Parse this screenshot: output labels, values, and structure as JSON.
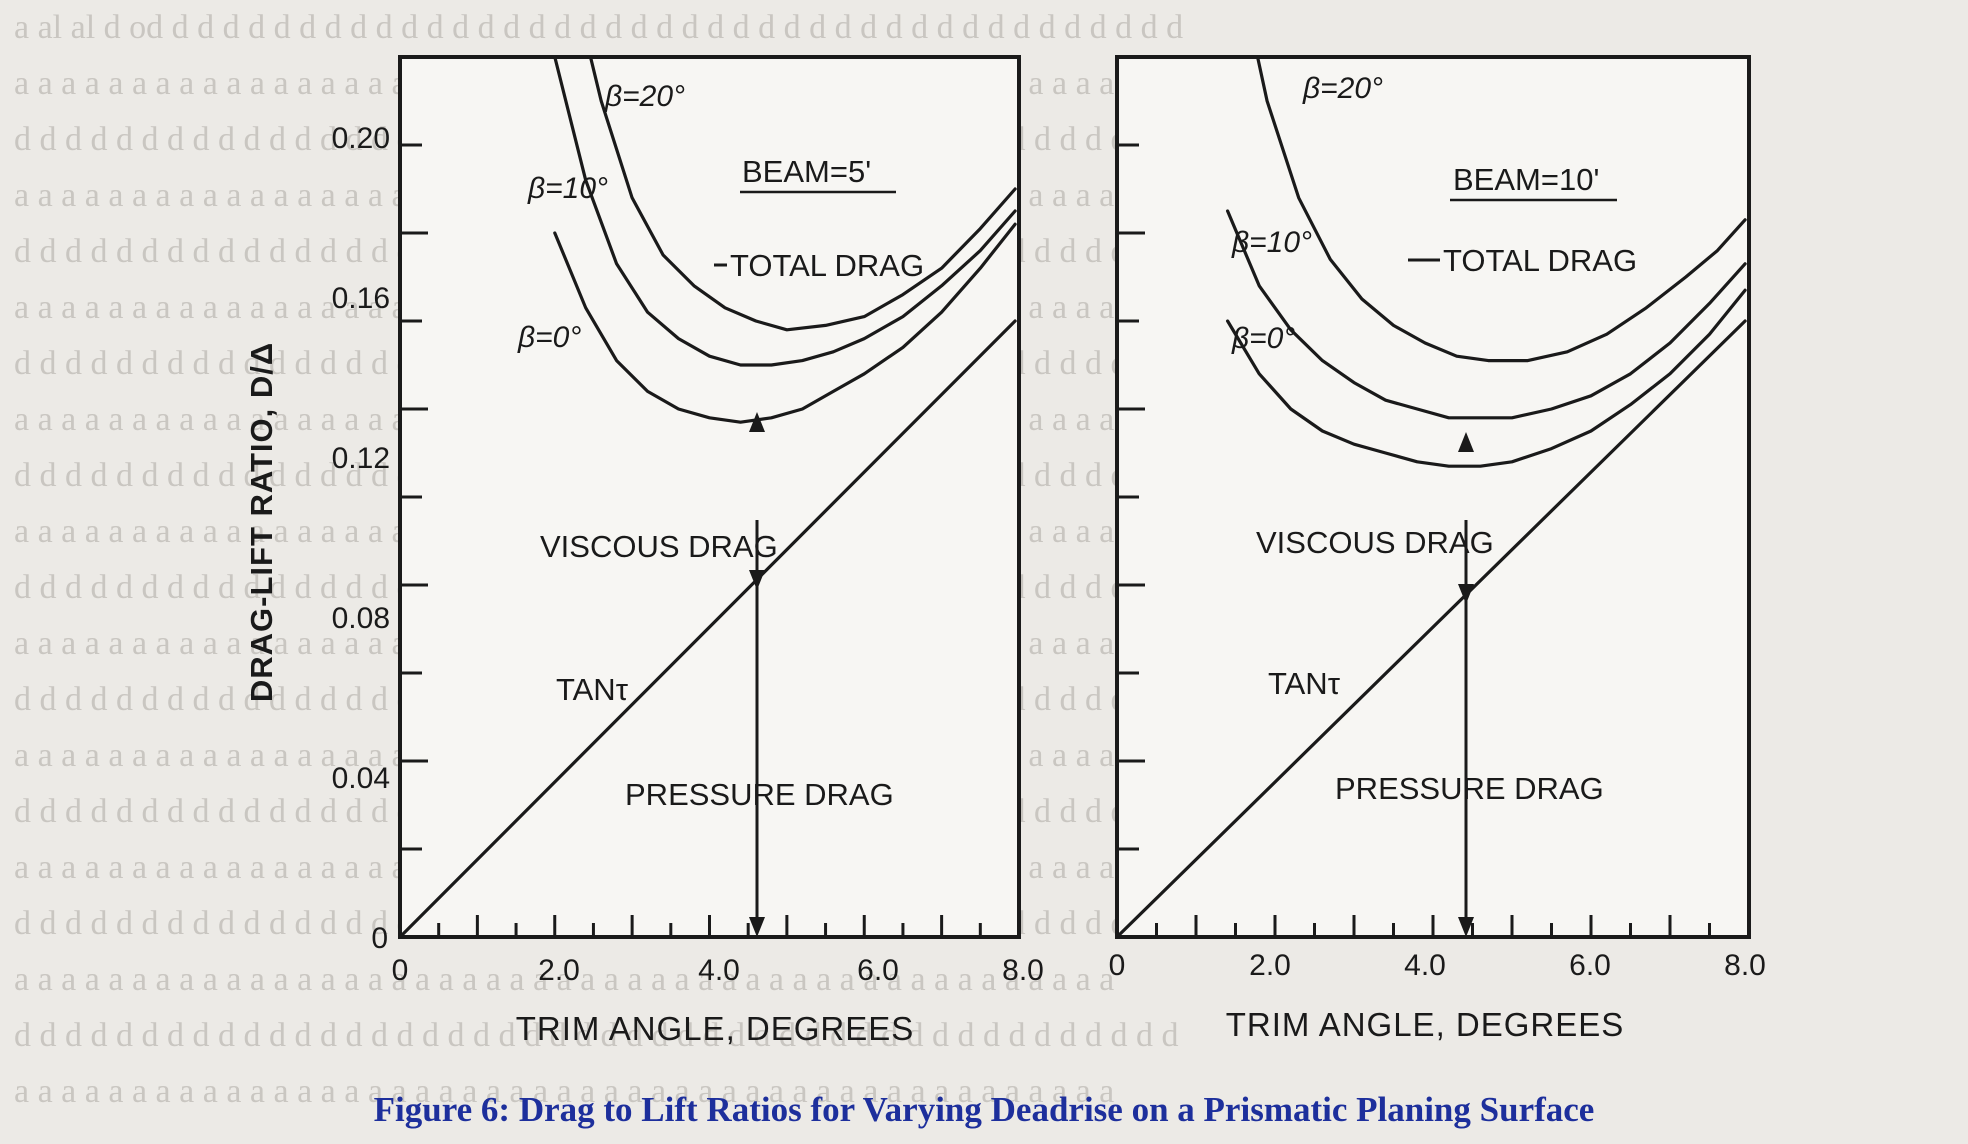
{
  "caption": "Figure 6: Drag to Lift Ratios for Varying Deadrise on a Prismatic Planing Surface",
  "colors": {
    "ink": "#1a1a1a",
    "caption": "#1d2f9c",
    "background": "#eceae6"
  },
  "chart_data": [
    {
      "type": "line",
      "panel": "left",
      "ylabel": "DRAG-LIFT RATIO, D/Δ",
      "xlabel": "TRIM ANGLE, DEGREES",
      "xlim": [
        0,
        8
      ],
      "ylim": [
        0,
        0.2
      ],
      "x_ticks": [
        "0",
        "2.0",
        "4.0",
        "6.0",
        "8.0"
      ],
      "y_ticks": [
        "0",
        "0.04",
        "0.08",
        "0.12",
        "0.16",
        "0.20"
      ],
      "y_ticks_values": [
        0,
        0.04,
        0.08,
        0.12,
        0.16,
        0.2
      ],
      "annotations": {
        "beam": "BEAM=5'",
        "total_drag": "TOTAL DRAG",
        "viscous_drag": "VISCOUS DRAG",
        "tan": "TANτ",
        "pressure_drag": "PRESSURE DRAG"
      },
      "series": [
        {
          "name": "β=20°",
          "x": [
            2.2,
            2.6,
            3.0,
            3.4,
            3.8,
            4.2,
            4.6,
            5.0,
            5.5,
            6.0,
            6.5,
            7.0,
            7.5,
            7.95
          ],
          "y": [
            0.219,
            0.19,
            0.168,
            0.155,
            0.148,
            0.143,
            0.14,
            0.138,
            0.139,
            0.141,
            0.146,
            0.152,
            0.161,
            0.17
          ]
        },
        {
          "name": "β=10°",
          "x": [
            2.0,
            2.4,
            2.8,
            3.2,
            3.6,
            4.0,
            4.4,
            4.8,
            5.2,
            5.6,
            6.0,
            6.5,
            7.0,
            7.5,
            7.95
          ],
          "y": [
            0.2,
            0.172,
            0.153,
            0.142,
            0.136,
            0.132,
            0.13,
            0.13,
            0.131,
            0.133,
            0.136,
            0.141,
            0.148,
            0.156,
            0.165
          ]
        },
        {
          "name": "β=0°",
          "x": [
            2.0,
            2.4,
            2.8,
            3.2,
            3.6,
            4.0,
            4.4,
            4.8,
            5.2,
            5.6,
            6.0,
            6.5,
            7.0,
            7.5,
            7.95
          ],
          "y": [
            0.16,
            0.143,
            0.131,
            0.124,
            0.12,
            0.118,
            0.117,
            0.118,
            0.12,
            0.124,
            0.128,
            0.134,
            0.142,
            0.152,
            0.162
          ]
        },
        {
          "name": "TANτ",
          "x": [
            0,
            7.95
          ],
          "y": [
            0,
            0.14
          ]
        }
      ]
    },
    {
      "type": "line",
      "panel": "right",
      "xlabel": "TRIM ANGLE, DEGREES",
      "xlim": [
        0,
        8
      ],
      "ylim": [
        0,
        0.2
      ],
      "x_ticks": [
        "0",
        "2.0",
        "4.0",
        "6.0",
        "8.0"
      ],
      "annotations": {
        "beam": "BEAM=10'",
        "total_drag": "TOTAL DRAG",
        "viscous_drag": "VISCOUS DRAG",
        "tan": "TANτ",
        "pressure_drag": "PRESSURE DRAG"
      },
      "series": [
        {
          "name": "β=20°",
          "x": [
            1.55,
            1.9,
            2.3,
            2.7,
            3.1,
            3.5,
            3.9,
            4.3,
            4.7,
            5.2,
            5.7,
            6.2,
            6.7,
            7.2,
            7.6,
            7.95
          ],
          "y": [
            0.219,
            0.19,
            0.168,
            0.154,
            0.145,
            0.139,
            0.135,
            0.132,
            0.131,
            0.131,
            0.133,
            0.137,
            0.143,
            0.15,
            0.156,
            0.163
          ]
        },
        {
          "name": "β=10°",
          "x": [
            1.4,
            1.8,
            2.2,
            2.6,
            3.0,
            3.4,
            3.8,
            4.2,
            4.6,
            5.0,
            5.5,
            6.0,
            6.5,
            7.0,
            7.5,
            7.95
          ],
          "y": [
            0.165,
            0.148,
            0.138,
            0.131,
            0.126,
            0.122,
            0.12,
            0.118,
            0.118,
            0.118,
            0.12,
            0.123,
            0.128,
            0.135,
            0.144,
            0.153
          ]
        },
        {
          "name": "β=0°",
          "x": [
            1.4,
            1.8,
            2.2,
            2.6,
            3.0,
            3.4,
            3.8,
            4.2,
            4.6,
            5.0,
            5.5,
            6.0,
            6.5,
            7.0,
            7.5,
            7.95
          ],
          "y": [
            0.14,
            0.128,
            0.12,
            0.115,
            0.112,
            0.11,
            0.108,
            0.107,
            0.107,
            0.108,
            0.111,
            0.115,
            0.121,
            0.128,
            0.137,
            0.147
          ]
        },
        {
          "name": "TANτ",
          "x": [
            0,
            7.95
          ],
          "y": [
            0,
            0.14
          ]
        }
      ]
    }
  ]
}
